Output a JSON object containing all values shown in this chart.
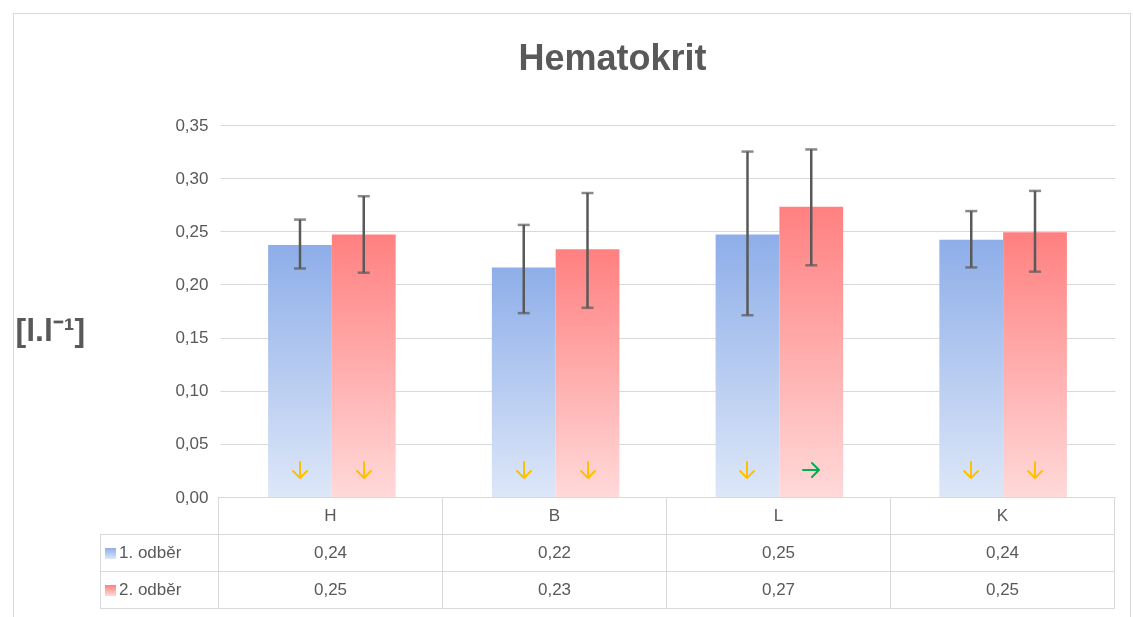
{
  "chart_data": {
    "type": "bar",
    "title": "Hematokrit",
    "ylabel": "[l.l⁻¹]",
    "categories": [
      "H",
      "B",
      "L",
      "K"
    ],
    "series": [
      {
        "name": "1. odběr",
        "color": "#8eaee9",
        "values": [
          0.237,
          0.216,
          0.247,
          0.242
        ],
        "errors": [
          [
            0.215,
            0.261
          ],
          [
            0.173,
            0.256
          ],
          [
            0.171,
            0.325
          ],
          [
            0.216,
            0.269
          ]
        ],
        "value_labels": [
          "0,24",
          "0,22",
          "0,25",
          "0,24"
        ]
      },
      {
        "name": "2. odběr",
        "color": "#ff8080",
        "values": [
          0.247,
          0.233,
          0.273,
          0.249
        ],
        "errors": [
          [
            0.211,
            0.283
          ],
          [
            0.178,
            0.286
          ],
          [
            0.218,
            0.327
          ],
          [
            0.212,
            0.288
          ]
        ],
        "value_labels": [
          "0,25",
          "0,23",
          "0,27",
          "0,25"
        ]
      }
    ],
    "ylim": [
      0,
      0.35
    ],
    "yticks": [
      {
        "value": 0,
        "label": "0,00"
      },
      {
        "value": 0.05,
        "label": "0,05"
      },
      {
        "value": 0.1,
        "label": "0,10"
      },
      {
        "value": 0.15,
        "label": "0,15"
      },
      {
        "value": 0.2,
        "label": "0,20"
      },
      {
        "value": 0.25,
        "label": "0,25"
      },
      {
        "value": 0.3,
        "label": "0,30"
      },
      {
        "value": 0.35,
        "label": "0,35"
      }
    ],
    "grid": true,
    "legend": "bottom"
  }
}
